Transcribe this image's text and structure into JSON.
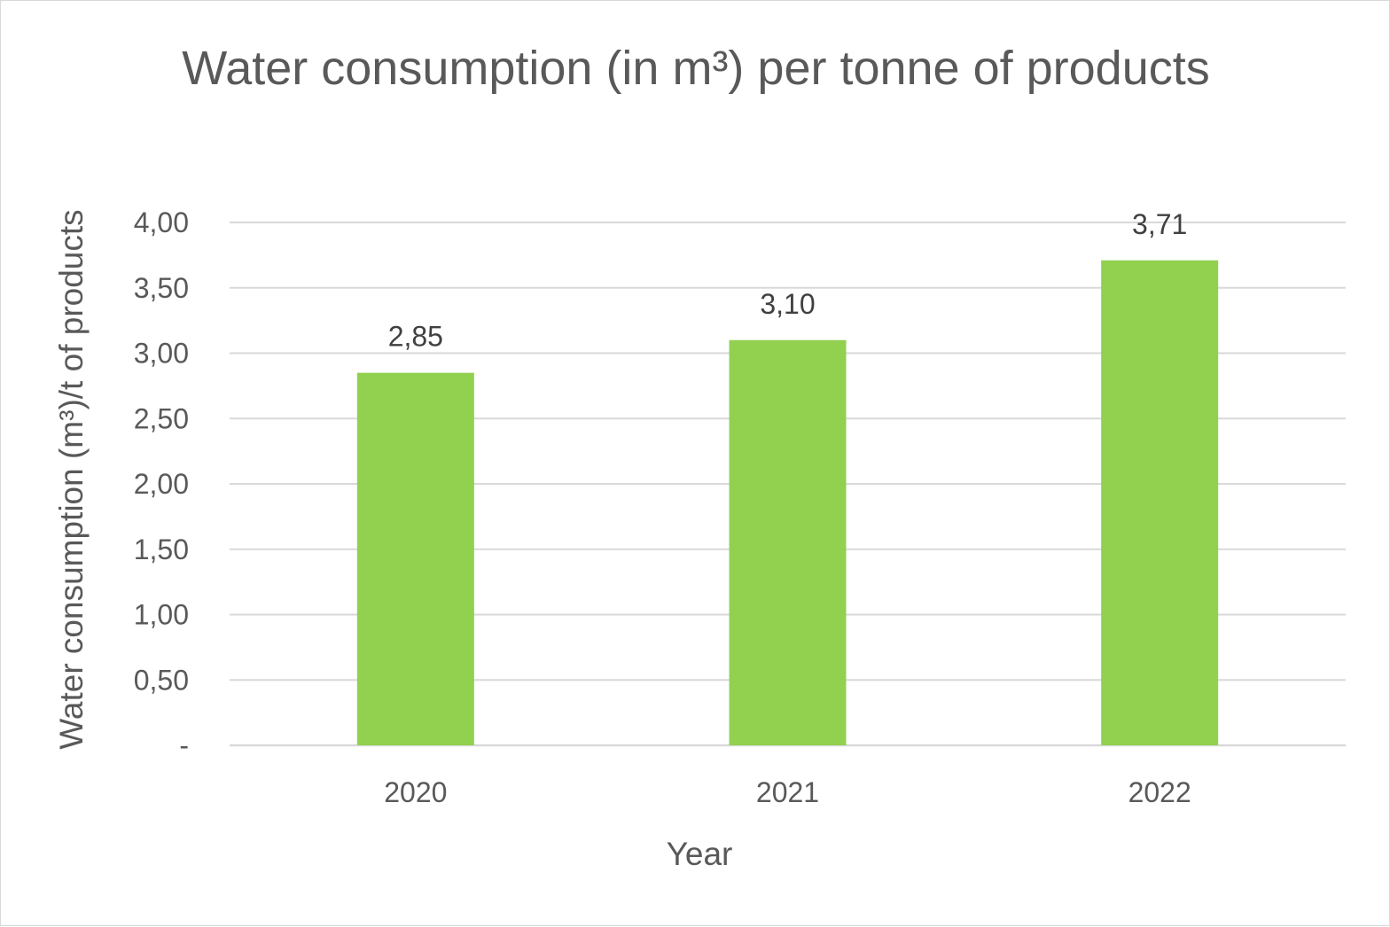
{
  "chart_data": {
    "type": "bar",
    "title": "Water consumption (in m³) per tonne of products",
    "xlabel": "Year",
    "ylabel": "Water consumption (m³)/t of products",
    "categories": [
      "2020",
      "2021",
      "2022"
    ],
    "values": [
      2.85,
      3.1,
      3.71
    ],
    "data_labels": [
      "2,85",
      "3,10",
      "3,71"
    ],
    "ylim": [
      0,
      4.0
    ],
    "yticks": [
      0,
      0.5,
      1.0,
      1.5,
      2.0,
      2.5,
      3.0,
      3.5,
      4.0
    ],
    "ytick_labels": [
      "-",
      "0,50",
      "1,00",
      "1,50",
      "2,00",
      "2,50",
      "3,00",
      "3,50",
      "4,00"
    ],
    "grid": true,
    "legend": "none",
    "bar_color": "#92d050",
    "grid_color": "#d9d9d9",
    "text_color": "#595959"
  }
}
